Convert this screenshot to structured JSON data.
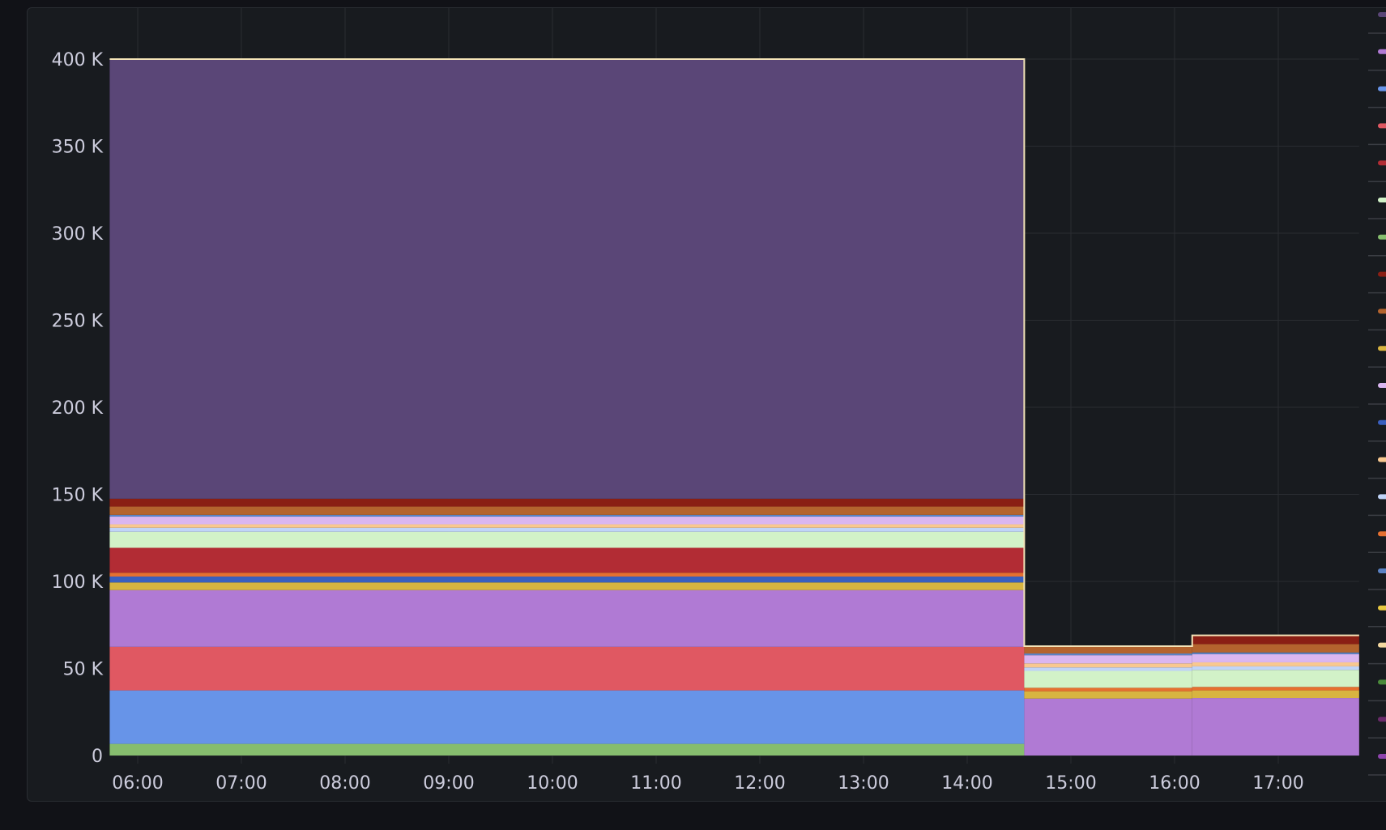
{
  "chart_data": {
    "type": "area",
    "stacked": true,
    "title": "",
    "xlabel": "",
    "ylabel": "",
    "ylim": [
      0,
      400000
    ],
    "y_ticks": [
      0,
      50000,
      100000,
      150000,
      200000,
      250000,
      300000,
      350000,
      400000
    ],
    "y_tick_labels": [
      "0",
      "50 K",
      "100 K",
      "150 K",
      "200 K",
      "250 K",
      "300 K",
      "350 K",
      "400 K"
    ],
    "x_range_hours": [
      5.73,
      17.78
    ],
    "x_ticks_hours": [
      6,
      7,
      8,
      9,
      10,
      11,
      12,
      13,
      14,
      15,
      16,
      17
    ],
    "x_tick_labels": [
      "06:00",
      "07:00",
      "08:00",
      "09:00",
      "10:00",
      "11:00",
      "12:00",
      "13:00",
      "14:00",
      "15:00",
      "16:00",
      "17:00"
    ],
    "segments_hours": [
      [
        5.73,
        14.55
      ],
      [
        14.55,
        16.17
      ],
      [
        16.17,
        17.78
      ]
    ],
    "grid": true,
    "legend_placement": "right",
    "series": [
      {
        "color": "#86bd6e",
        "values": [
          6700,
          0,
          0
        ]
      },
      {
        "color": "#6794e8",
        "values": [
          30700,
          0,
          0
        ]
      },
      {
        "color": "#e05862",
        "values": [
          25000,
          0,
          0
        ]
      },
      {
        "color": "#b07ad4",
        "values": [
          32600,
          32700,
          33000
        ]
      },
      {
        "color": "#d8b440",
        "values": [
          4400,
          4200,
          4400
        ]
      },
      {
        "color": "#3a5fbf",
        "values": [
          3400,
          0,
          0
        ]
      },
      {
        "color": "#e67030",
        "values": [
          2200,
          2000,
          2000
        ]
      },
      {
        "color": "#b22c34",
        "values": [
          14300,
          0,
          0
        ]
      },
      {
        "color": "#d2f2c8",
        "values": [
          9200,
          9700,
          9800
        ]
      },
      {
        "color": "#c0d4f8",
        "values": [
          2300,
          2000,
          2000
        ]
      },
      {
        "color": "#f8c890",
        "values": [
          2000,
          2300,
          2300
        ]
      },
      {
        "color": "#dab6f0",
        "values": [
          4400,
          4700,
          4700
        ]
      },
      {
        "color": "#5a82c4",
        "values": [
          1000,
          1000,
          1000
        ]
      },
      {
        "color": "#b4642e",
        "values": [
          4800,
          4200,
          4800
        ]
      },
      {
        "color": "#8a1f14",
        "values": [
          4500,
          0,
          5000
        ]
      },
      {
        "color": "#5a4677",
        "values": [
          252500,
          0,
          0
        ]
      }
    ],
    "total_line_color": "#f4e4b8",
    "legend_markers": [
      "#5a4677",
      "#b07ad4",
      "#6794e8",
      "#e05862",
      "#b22c34",
      "#d2f2c8",
      "#86bd6e",
      "#8a1f14",
      "#b4642e",
      "#d8b440",
      "#dab6f0",
      "#3a5fbf",
      "#f8c890",
      "#c0d4f8",
      "#e67030",
      "#5a82c4",
      "#e8c840",
      "#f4d8a0",
      "#4a8a3a",
      "#6a2a6a",
      "#8e44ad"
    ]
  }
}
